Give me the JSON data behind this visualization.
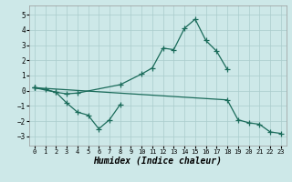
{
  "l1x": [
    0,
    1,
    2,
    3,
    4,
    8,
    10,
    11,
    12,
    13,
    14,
    15,
    16,
    17,
    18
  ],
  "l1y": [
    0.2,
    0.1,
    -0.1,
    -0.2,
    -0.15,
    0.4,
    1.1,
    1.5,
    2.8,
    2.7,
    4.1,
    4.7,
    3.3,
    2.6,
    1.4
  ],
  "l2x": [
    0,
    2,
    3,
    4,
    5,
    6,
    7,
    8
  ],
  "l2y": [
    0.2,
    -0.1,
    -0.8,
    -1.4,
    -1.6,
    -2.5,
    -1.9,
    -0.9
  ],
  "l3x": [
    0,
    18,
    19,
    20,
    21,
    22,
    23
  ],
  "l3y": [
    0.2,
    -0.6,
    -1.9,
    -2.1,
    -2.2,
    -2.7,
    -2.8
  ],
  "color": "#1a6b5a",
  "bg_color": "#cde8e8",
  "grid_color": "#aacccc",
  "xlabel": "Humidex (Indice chaleur)",
  "xlim": [
    -0.5,
    23.5
  ],
  "ylim": [
    -3.6,
    5.6
  ],
  "yticks": [
    -3,
    -2,
    -1,
    0,
    1,
    2,
    3,
    4,
    5
  ],
  "xticks": [
    0,
    1,
    2,
    3,
    4,
    5,
    6,
    7,
    8,
    9,
    10,
    11,
    12,
    13,
    14,
    15,
    16,
    17,
    18,
    19,
    20,
    21,
    22,
    23
  ]
}
